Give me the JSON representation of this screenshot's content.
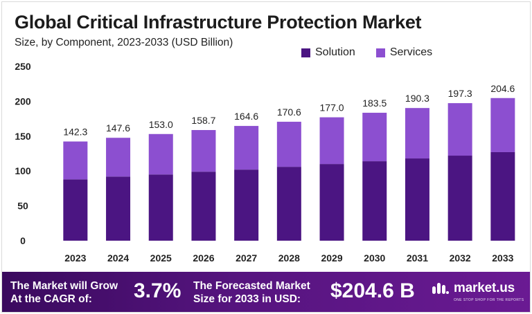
{
  "chart_data": {
    "type": "bar",
    "stacked": true,
    "title": "Global Critical Infrastructure Protection Market",
    "subtitle": "Size, by Component, 2023-2033 (USD Billion)",
    "categories": [
      "2023",
      "2024",
      "2025",
      "2026",
      "2027",
      "2028",
      "2029",
      "2030",
      "2031",
      "2032",
      "2033"
    ],
    "series": [
      {
        "name": "Solution",
        "color": "#4b1582",
        "values": [
          88,
          92,
          95,
          99,
          102,
          106,
          110,
          114,
          118,
          122,
          127
        ]
      },
      {
        "name": "Services",
        "color": "#8c4fd0",
        "values": [
          54.3,
          55.6,
          58.0,
          59.7,
          62.6,
          64.6,
          67.0,
          69.5,
          72.3,
          75.3,
          77.6
        ]
      }
    ],
    "totals": [
      "142.3",
      "147.6",
      "153.0",
      "158.7",
      "164.6",
      "170.6",
      "177.0",
      "183.5",
      "190.3",
      "197.3",
      "204.6"
    ],
    "y_ticks": [
      "0",
      "50",
      "100",
      "150",
      "200",
      "250"
    ],
    "ylim": [
      0,
      250
    ],
    "grid": false,
    "legend_position": "top-right"
  },
  "footer": {
    "cagr_label_line1": "The Market will Grow",
    "cagr_label_line2": "At the CAGR of:",
    "cagr_value": "3.7%",
    "forecast_label_line1": "The Forecasted Market",
    "forecast_label_line2": "Size for 2033 in USD:",
    "forecast_value": "$204.6 B",
    "brand": "market.us",
    "brand_tagline": "ONE STOP SHOP FOR THE REPORTS"
  }
}
